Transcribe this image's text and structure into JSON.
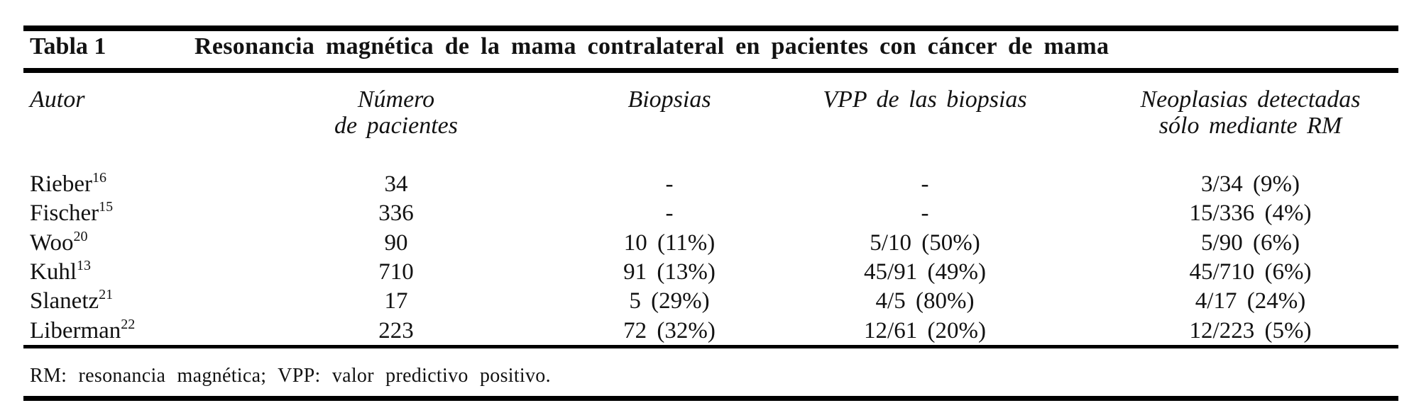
{
  "table": {
    "label": "Tabla 1",
    "title": "Resonancia magnética de la mama contralateral en pacientes con cáncer de mama",
    "columns": {
      "author": "Autor",
      "patients_line1": "Número",
      "patients_line2": "de pacientes",
      "biopsies": "Biopsias",
      "ppv": "VPP de las biopsias",
      "neoplasms_line1": "Neoplasias detectadas",
      "neoplasms_line2": "sólo mediante RM"
    },
    "rows": [
      {
        "author": "Rieber",
        "ref": "16",
        "patients": "34",
        "biopsies": "-",
        "ppv": "-",
        "neoplasms": "3/34 (9%)"
      },
      {
        "author": "Fischer",
        "ref": "15",
        "patients": "336",
        "biopsies": "-",
        "ppv": "-",
        "neoplasms": "15/336 (4%)"
      },
      {
        "author": "Woo",
        "ref": "20",
        "patients": "90",
        "biopsies": "10 (11%)",
        "ppv": "5/10 (50%)",
        "neoplasms": "5/90 (6%)"
      },
      {
        "author": "Kuhl",
        "ref": "13",
        "patients": "710",
        "biopsies": "91 (13%)",
        "ppv": "45/91 (49%)",
        "neoplasms": "45/710 (6%)"
      },
      {
        "author": "Slanetz",
        "ref": "21",
        "patients": "17",
        "biopsies": "5 (29%)",
        "ppv": "4/5 (80%)",
        "neoplasms": "4/17 (24%)"
      },
      {
        "author": "Liberman",
        "ref": "22",
        "patients": "223",
        "biopsies": "72 (32%)",
        "ppv": "12/61 (20%)",
        "neoplasms": "12/223 (5%)"
      }
    ],
    "footnote": "RM: resonancia magnética; VPP: valor predictivo positivo.",
    "colors": {
      "text": "#121212",
      "rule": "#000000",
      "background": "#ffffff"
    }
  }
}
